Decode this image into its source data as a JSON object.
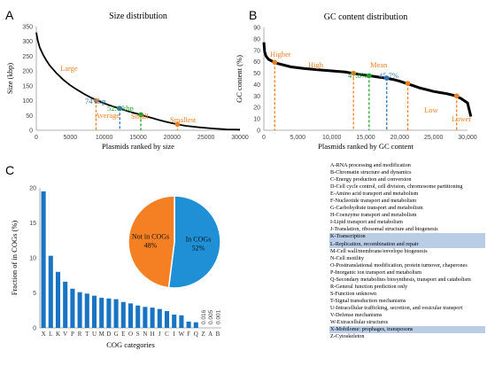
{
  "panels": {
    "a": {
      "letter": "A"
    },
    "b": {
      "letter": "B"
    },
    "c": {
      "letter": "C"
    }
  },
  "colors": {
    "curve": "#000000",
    "orange": "#f07f1e",
    "blue": "#2e75b6",
    "green": "#22a12a",
    "bar": "#1a74c4",
    "pie_in": "#1f8fd6",
    "pie_out": "#f58024",
    "highlight": "#b9cde5"
  },
  "chart_data": [
    {
      "type": "line",
      "title": "Size distribution",
      "xlabel": "Plasmids ranked by size",
      "ylabel": "Size (kbp)",
      "xlim": [
        0,
        30000
      ],
      "ylim": [
        0,
        350
      ],
      "xticks": [
        "0",
        "5000",
        "10000",
        "15000",
        "20000",
        "25000",
        "30000"
      ],
      "yticks": [
        "0",
        "50",
        "100",
        "150",
        "200",
        "250",
        "300",
        "350"
      ],
      "x": [
        0,
        200,
        500,
        1000,
        1500,
        2000,
        3000,
        4000,
        5000,
        6000,
        7000,
        8000,
        9000,
        10000,
        11000,
        12000,
        13000,
        14000,
        15000,
        16000,
        17000,
        18000,
        19000,
        20000,
        21000,
        22000,
        24000,
        26000,
        28000,
        30000
      ],
      "values": [
        330,
        305,
        280,
        255,
        235,
        218,
        192,
        170,
        152,
        137,
        123,
        111,
        100,
        91,
        83,
        75,
        68,
        61,
        55,
        48,
        42,
        35,
        29,
        24,
        19,
        15,
        10,
        6,
        3,
        2
      ],
      "annotations": [
        {
          "label": "Large",
          "color": "orange"
        },
        {
          "label": "Average",
          "color": "orange"
        },
        {
          "label": "74 kbp",
          "color": "blue"
        },
        {
          "label": "52.6 kbp",
          "color": "green"
        },
        {
          "label": "Small",
          "color": "orange"
        },
        {
          "label": "Smallest",
          "color": "orange"
        }
      ],
      "markers": [
        {
          "x": 8800,
          "y": 100,
          "color": "orange"
        },
        {
          "x": 12300,
          "y": 74,
          "color": "blue"
        },
        {
          "x": 15400,
          "y": 52.6,
          "color": "green"
        },
        {
          "x": 20800,
          "y": 20,
          "color": "orange"
        }
      ],
      "grid": false
    },
    {
      "type": "line",
      "title": "GC content distribution",
      "xlabel": "Plasmids ranked by GC content",
      "ylabel": "GC content (%)",
      "xlim": [
        0,
        30000
      ],
      "ylim": [
        0,
        90
      ],
      "xticks": [
        "0",
        "5,000",
        "10,000",
        "15,000",
        "20,000",
        "25,000",
        "30,000"
      ],
      "yticks": [
        "0",
        "10",
        "20",
        "30",
        "40",
        "50",
        "60",
        "70",
        "80",
        "90"
      ],
      "x": [
        0,
        100,
        300,
        700,
        1200,
        2000,
        4000,
        6000,
        8000,
        10000,
        12000,
        13000,
        14000,
        15500,
        17000,
        18000,
        19000,
        20000,
        21000,
        22000,
        23000,
        24000,
        25000,
        26000,
        27000,
        28000,
        29000,
        30000,
        30500
      ],
      "values": [
        77,
        69,
        65,
        62,
        60.5,
        58.5,
        55.5,
        54,
        53,
        52,
        51,
        50,
        49,
        47.8,
        46.5,
        45.7,
        44.5,
        43,
        41,
        39,
        37,
        35.5,
        34,
        33,
        32,
        30.5,
        28,
        24,
        12
      ],
      "annotations": [
        {
          "label": "Higher",
          "color": "orange"
        },
        {
          "label": "High",
          "color": "orange"
        },
        {
          "label": "47.8%",
          "color": "green"
        },
        {
          "label": "Mean",
          "color": "orange"
        },
        {
          "label": "45.7%",
          "color": "blue"
        },
        {
          "label": "Low",
          "color": "orange"
        },
        {
          "label": "Lower",
          "color": "orange"
        }
      ],
      "markers": [
        {
          "x": 1600,
          "y": 59.5,
          "color": "orange"
        },
        {
          "x": 13200,
          "y": 50,
          "color": "orange"
        },
        {
          "x": 15500,
          "y": 47.8,
          "color": "green"
        },
        {
          "x": 18100,
          "y": 45.7,
          "color": "blue"
        },
        {
          "x": 21200,
          "y": 41,
          "color": "orange"
        },
        {
          "x": 28400,
          "y": 30,
          "color": "orange"
        }
      ],
      "grid": false
    },
    {
      "type": "bar",
      "xlabel": "COG categories",
      "ylabel": "Fraction of in COGs (%)",
      "ylim": [
        0,
        20
      ],
      "yticks": [
        "0",
        "5",
        "10",
        "15",
        "20"
      ],
      "categories": [
        "X",
        "L",
        "K",
        "V",
        "P",
        "R",
        "T",
        "U",
        "M",
        "D",
        "G",
        "E",
        "O",
        "S",
        "N",
        "H",
        "J",
        "C",
        "I",
        "W",
        "F",
        "Q",
        "Z",
        "A",
        "B"
      ],
      "values": [
        19.5,
        10.3,
        8.0,
        6.6,
        5.6,
        5.1,
        4.9,
        4.6,
        4.3,
        4.2,
        4.1,
        3.7,
        3.5,
        3.2,
        3.0,
        2.9,
        2.7,
        2.4,
        1.9,
        1.8,
        0.9,
        0.8,
        0.016,
        0.005,
        0.001
      ],
      "value_labels": [
        {
          "category": "Z",
          "text": "0.016"
        },
        {
          "category": "A",
          "text": "0.005"
        },
        {
          "category": "B",
          "text": "0.001"
        }
      ],
      "grid": false
    },
    {
      "type": "pie",
      "labels": [
        "In COGs",
        "Not in COGs"
      ],
      "values": [
        52,
        48
      ],
      "value_text": [
        "52%",
        "48%"
      ],
      "colors": [
        "pie_in",
        "pie_out"
      ]
    }
  ],
  "cog_legend": [
    {
      "text": "A-RNA processing and modification",
      "highlight": false
    },
    {
      "text": "B-Chromatin structure and dynamics",
      "highlight": false
    },
    {
      "text": "C-Energy production and conversion",
      "highlight": false
    },
    {
      "text": "D-Cell cycle control, cell division, chromosome partitioning",
      "highlight": false
    },
    {
      "text": "E-Amino acid transport and metabolism",
      "highlight": false
    },
    {
      "text": "F-Nucleotide transport and metabolism",
      "highlight": false
    },
    {
      "text": "G-Carbohydrate transport and metabolism",
      "highlight": false
    },
    {
      "text": "H-Coenzyme transport and metabolism",
      "highlight": false
    },
    {
      "text": "I-Lipid transport and metabolism",
      "highlight": false
    },
    {
      "text": "J-Translation, ribosomal structure and biogenesis",
      "highlight": false
    },
    {
      "text": "K-Transcription",
      "highlight": true
    },
    {
      "text": "L-Replication, recombination and repair",
      "highlight": true
    },
    {
      "text": "M-Cell wall/membrane/envelope biogenesis",
      "highlight": false
    },
    {
      "text": "N-Cell motility",
      "highlight": false
    },
    {
      "text": "O-Posttranslational modification, protein turnover, chaperones",
      "highlight": false
    },
    {
      "text": "P-Inorganic ion transport and metabolism",
      "highlight": false
    },
    {
      "text": "Q-Secondary metabolites biosynthesis, transport and catabolism",
      "highlight": false
    },
    {
      "text": "R-General function prediction only",
      "highlight": false
    },
    {
      "text": "S-Function unknown",
      "highlight": false
    },
    {
      "text": "T-Signal transduction mechanisms",
      "highlight": false
    },
    {
      "text": "U-Intracellular trafficking, secretion, and vesicular transport",
      "highlight": false
    },
    {
      "text": "V-Defense mechanisms",
      "highlight": false
    },
    {
      "text": "W-Extracellular structures",
      "highlight": false
    },
    {
      "text": "X-Mobilome: prophages, transposons",
      "highlight": true
    },
    {
      "text": "Z-Cytoskeleton",
      "highlight": false
    }
  ]
}
